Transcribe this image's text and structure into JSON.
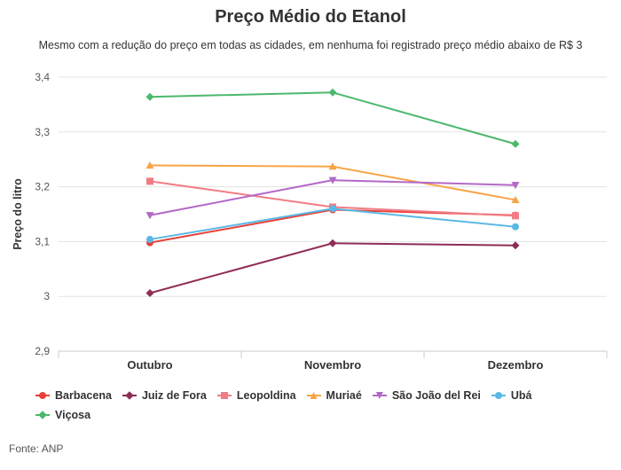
{
  "title": "Preço Médio do Etanol",
  "subtitle": "Mesmo com a redução do preço em todas as cidades, em nenhuma foi registrado preço médio abaixo de R$ 3",
  "source": "Fonte: ANP",
  "chart_data": {
    "type": "line",
    "title": "Preço Médio do Etanol",
    "ylabel": "Preço do litro",
    "xlabel": "",
    "categories": [
      "Outubro",
      "Novembro",
      "Dezembro"
    ],
    "ylim": [
      2.9,
      3.4
    ],
    "yticks": [
      "2,9",
      "3",
      "3,1",
      "3,2",
      "3,3",
      "3,4"
    ],
    "yticks_values": [
      2.9,
      3.0,
      3.1,
      3.2,
      3.3,
      3.4
    ],
    "grid": true,
    "legend_position": "bottom",
    "series": [
      {
        "name": "Barbacena",
        "color": "#e8413b",
        "marker": "circle",
        "values": [
          3.098,
          3.158,
          3.148
        ]
      },
      {
        "name": "Juiz de Fora",
        "color": "#8e2d57",
        "marker": "diamond",
        "values": [
          3.006,
          3.097,
          3.093
        ]
      },
      {
        "name": "Leopoldina",
        "color": "#f27c84",
        "marker": "square",
        "values": [
          3.21,
          3.163,
          3.147
        ]
      },
      {
        "name": "Muriaé",
        "color": "#f8a445",
        "marker": "triangle",
        "values": [
          3.239,
          3.237,
          3.176
        ]
      },
      {
        "name": "São João del Rei",
        "color": "#b368c7",
        "marker": "triangle-down",
        "values": [
          3.148,
          3.212,
          3.203
        ]
      },
      {
        "name": "Ubá",
        "color": "#59b9e4",
        "marker": "circle",
        "values": [
          3.104,
          3.16,
          3.127
        ]
      },
      {
        "name": "Viçosa",
        "color": "#4cb86c",
        "marker": "diamond",
        "values": [
          3.364,
          3.372,
          3.278
        ]
      }
    ]
  }
}
